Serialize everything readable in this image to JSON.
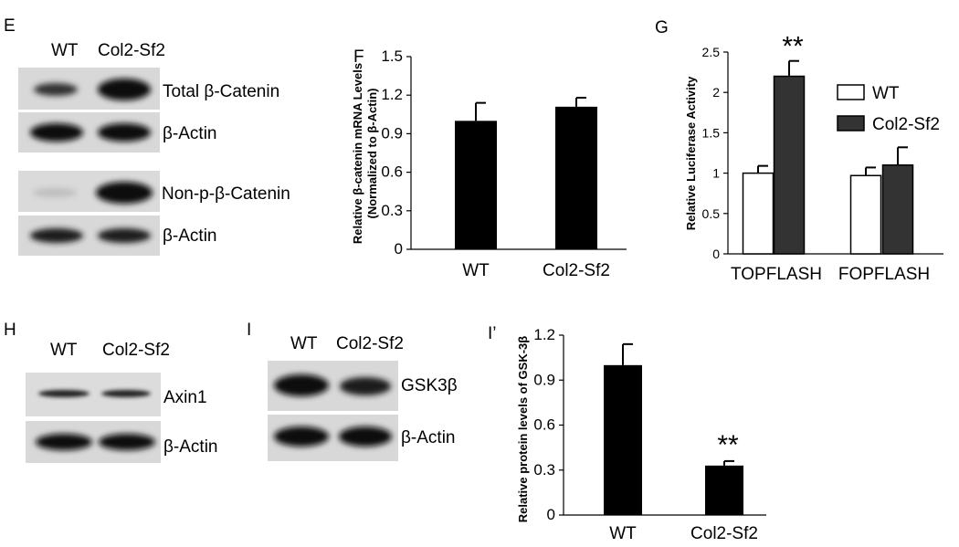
{
  "panels": {
    "E": {
      "label": "E",
      "lanes": [
        "WT",
        "Col2-Sf2"
      ],
      "blots": [
        {
          "label": "Total β-Catenin",
          "intensity": [
            0.55,
            1.0
          ]
        },
        {
          "label": "β-Actin",
          "intensity": [
            1.0,
            1.0
          ]
        },
        {
          "label": "Non-p-β-Catenin",
          "intensity": [
            0.08,
            1.0
          ]
        },
        {
          "label": "β-Actin",
          "intensity": [
            0.9,
            0.9
          ]
        }
      ]
    },
    "H": {
      "label": "H",
      "lanes": [
        "WT",
        "Col2-Sf2"
      ],
      "blots": [
        {
          "label": "Axin1",
          "intensity": [
            0.55,
            0.55
          ]
        },
        {
          "label": "β-Actin",
          "intensity": [
            1.0,
            1.0
          ]
        }
      ]
    },
    "I": {
      "label": "I",
      "lanes": [
        "WT",
        "Col2-Sf2"
      ],
      "blots": [
        {
          "label": "GSK3β",
          "intensity": [
            1.0,
            0.8
          ]
        },
        {
          "label": "β-Actin",
          "intensity": [
            1.0,
            1.0
          ]
        }
      ]
    },
    "F": {
      "label": "F"
    },
    "G": {
      "label": "G"
    },
    "I2": {
      "label": "I’"
    }
  },
  "chart_data": [
    {
      "id": "F",
      "type": "bar",
      "categories": [
        "WT",
        "Col2-Sf2"
      ],
      "values": [
        1.0,
        1.11
      ],
      "errors": [
        0.14,
        0.07
      ],
      "ylabel": "Relative β-catenin mRNA Levels",
      "ylabel2": "(Normalized to β-Actin)",
      "ylim": [
        0,
        1.5
      ],
      "yticks": [
        "0",
        "0.3",
        "0.6",
        "0.9",
        "1.2",
        "1.5"
      ],
      "bar_color": "#000000",
      "annotations": []
    },
    {
      "id": "G",
      "type": "bar",
      "categories": [
        "TOPFLASH",
        "FOPFLASH"
      ],
      "series": [
        {
          "name": "WT",
          "values": [
            1.0,
            0.97
          ],
          "errors": [
            0.09,
            0.1
          ],
          "color": "#ffffff"
        },
        {
          "name": "Col2-Sf2",
          "values": [
            2.2,
            1.1
          ],
          "errors": [
            0.19,
            0.22
          ],
          "color": "#333333"
        }
      ],
      "ylabel": "Relative Luciferase Activity",
      "ylim": [
        0,
        2.5
      ],
      "yticks": [
        "0",
        "0.5",
        "1",
        "1.5",
        "2",
        "2.5"
      ],
      "legend": "top-right",
      "annotations": [
        {
          "text": "**",
          "category": "TOPFLASH",
          "series": "Col2-Sf2"
        }
      ]
    },
    {
      "id": "I2",
      "type": "bar",
      "categories": [
        "WT",
        "Col2-Sf2"
      ],
      "values": [
        1.0,
        0.33
      ],
      "errors": [
        0.14,
        0.03
      ],
      "ylabel": "Relative protein levels of GSK-3β",
      "ylim": [
        0,
        1.2
      ],
      "yticks": [
        "0",
        "0.3",
        "0.6",
        "0.9",
        "1.2"
      ],
      "bar_color": "#000000",
      "annotations": [
        {
          "text": "**",
          "category": "Col2-Sf2"
        }
      ]
    }
  ]
}
